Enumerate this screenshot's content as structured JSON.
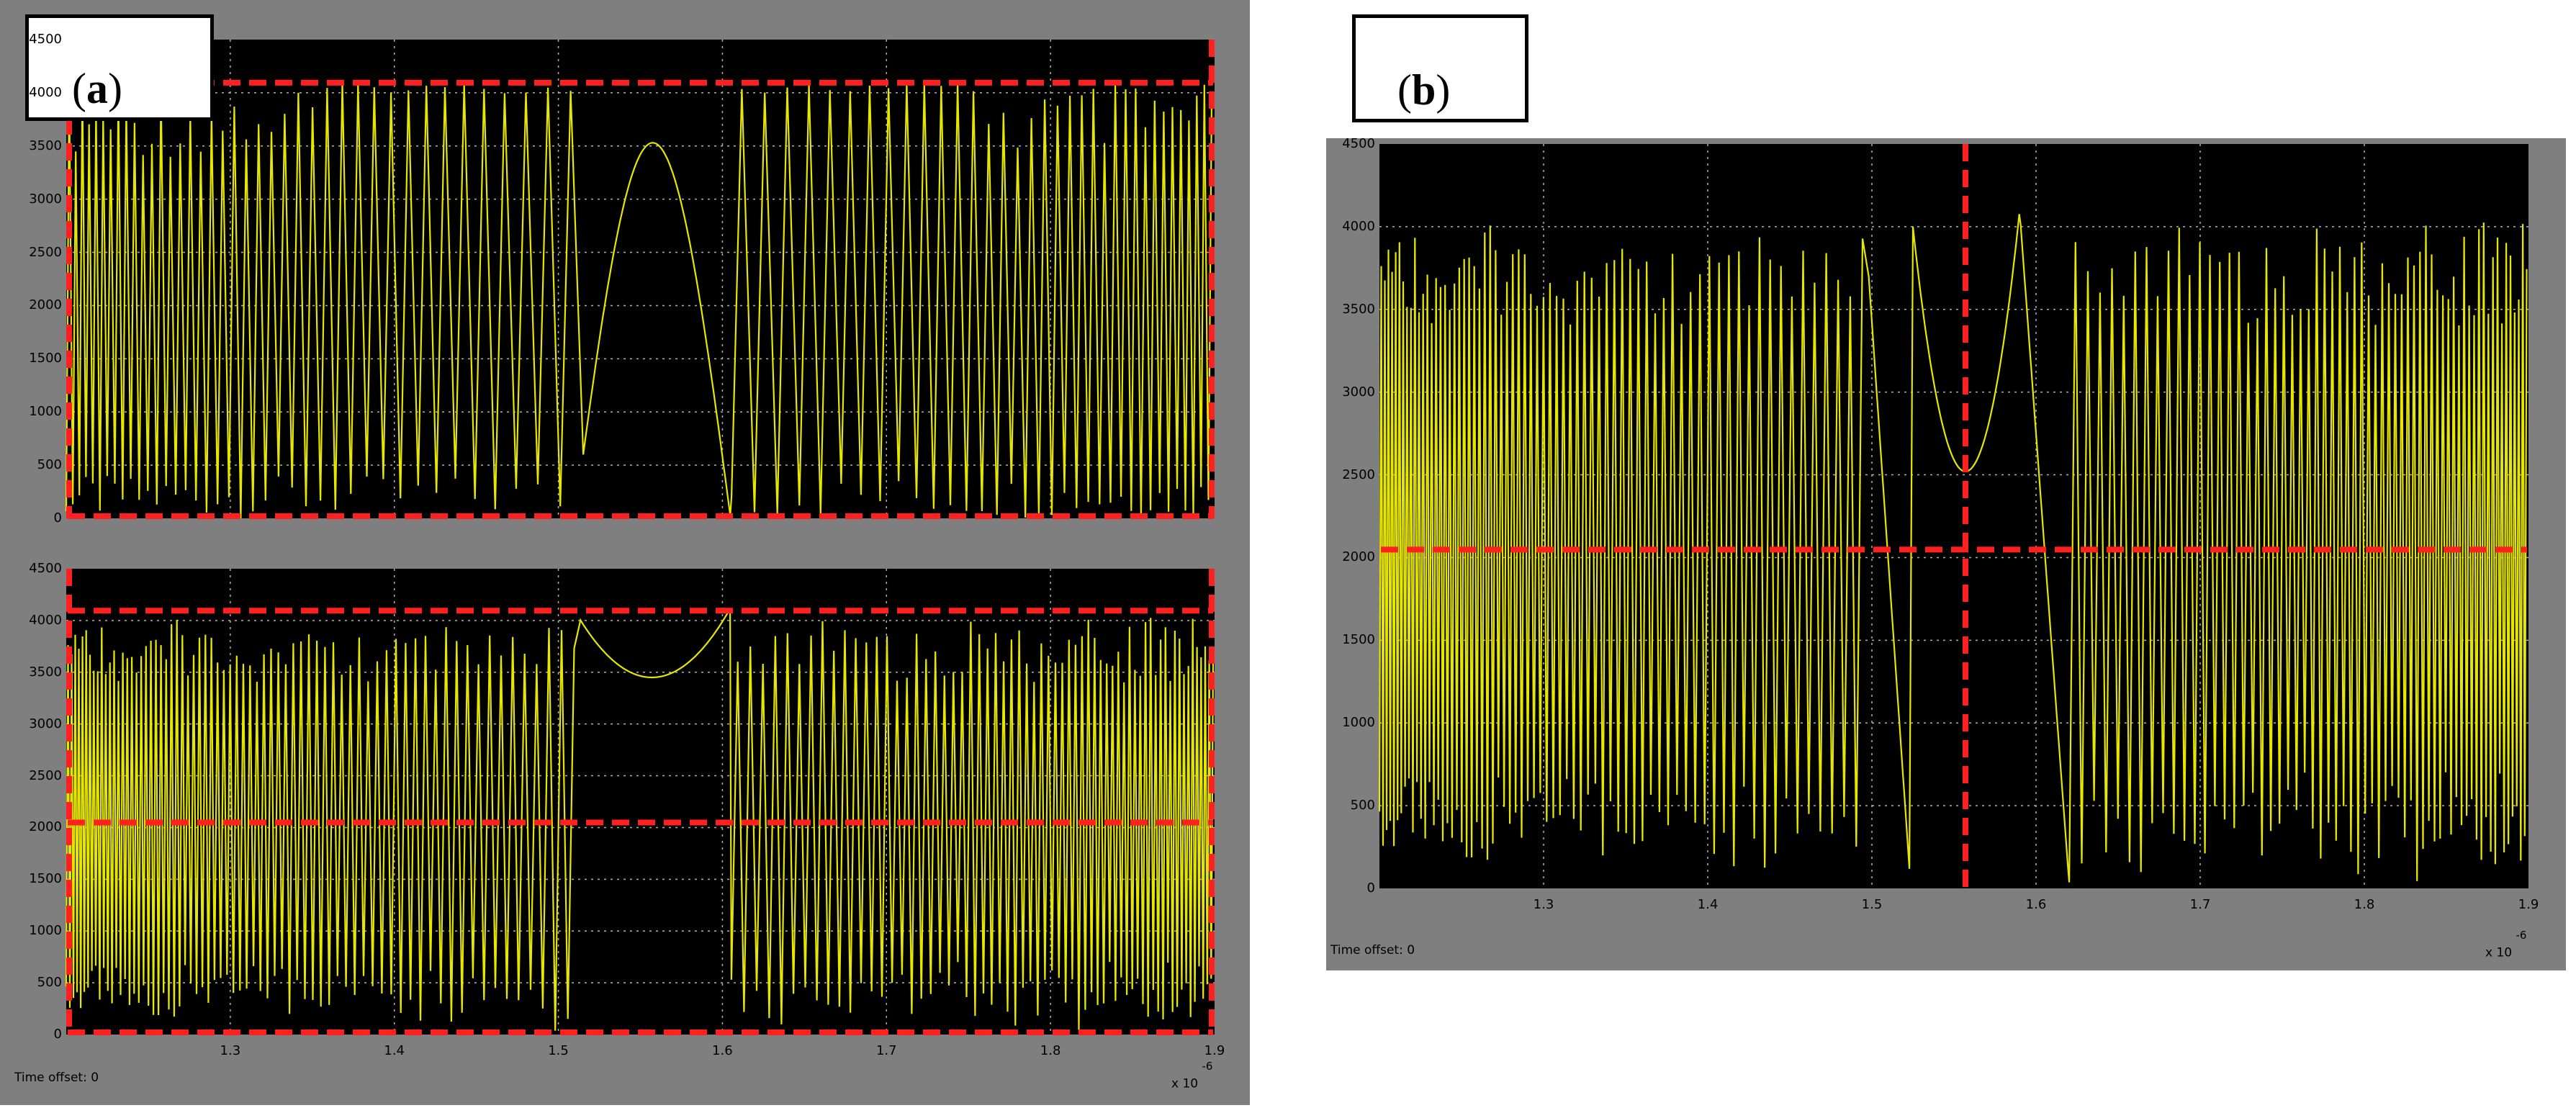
{
  "panels": {
    "a_label": "a",
    "b_label": "b",
    "time_offset_a": "Time offset:  0",
    "time_offset_b": "Time offset:  0",
    "exp_a": "x 10",
    "exp_a_sup": "-6",
    "exp_b": "x 10",
    "exp_b_sup": "-6"
  },
  "colors": {
    "frame": "#7f7f7f",
    "plot_bg": "#000000",
    "trace": "#e6e600",
    "grid": "#b0b0b0",
    "marker": "#ff2020"
  },
  "chart_data": [
    {
      "id": "a-top",
      "type": "line",
      "title": "",
      "xlabel": "",
      "ylabel": "",
      "xlim": [
        1.2,
        1.9
      ],
      "ylim": [
        0,
        4500
      ],
      "xticks": [],
      "yticks": [
        "0",
        "500",
        "1000",
        "1500",
        "2000",
        "2500",
        "3000",
        "3500",
        "4000",
        "4500"
      ],
      "grid": true,
      "series": [
        {
          "description_of_trace": "dense oscillating waveform",
          "min": 0,
          "max": 4095,
          "regions": [
            {
              "x": [
                1.2,
                1.35
              ],
              "start_period": 0.004,
              "end_period": 0.0062
            },
            {
              "x": [
                1.35,
                1.5
              ],
              "start_period": 0.0062,
              "end_period": 0.014
            },
            {
              "x": [
                1.5,
                1.62
              ],
              "shape": "slow-lobe",
              "peak_x": 1.557,
              "peak_y": 3530
            },
            {
              "x": [
                1.62,
                1.75
              ],
              "start_period": 0.014,
              "end_period": 0.0062
            },
            {
              "x": [
                1.75,
                1.9
              ],
              "start_period": 0.0062,
              "end_period": 0.004
            }
          ]
        }
      ],
      "markers": {
        "h_lines": [
          0,
          4095
        ],
        "v_lines": [
          1.2,
          1.9
        ],
        "style": "red-dashed-box"
      }
    },
    {
      "id": "a-bottom",
      "type": "line",
      "title": "",
      "xlabel": "",
      "ylabel": "",
      "xlim": [
        1.2,
        1.9
      ],
      "ylim": [
        0,
        4500
      ],
      "xticks": [
        "1.3",
        "1.4",
        "1.5",
        "1.6",
        "1.7",
        "1.8",
        "1.9"
      ],
      "yticks": [
        "0",
        "500",
        "1000",
        "1500",
        "2000",
        "2500",
        "3000",
        "3500",
        "4000",
        "4500"
      ],
      "grid": true,
      "series": [
        {
          "description_of_trace": "folded dense oscillating waveform",
          "min": 0,
          "max": 4095,
          "dip_x": 1.557,
          "dip_y": 3450
        }
      ],
      "markers": {
        "h_lines": [
          0,
          2048,
          4095
        ],
        "v_lines": [
          1.2,
          1.9
        ],
        "style": "red-dashed"
      }
    },
    {
      "id": "b",
      "type": "line",
      "title": "",
      "xlabel": "",
      "ylabel": "",
      "xlim": [
        1.2,
        1.9
      ],
      "ylim": [
        0,
        4500
      ],
      "xticks": [
        "1.3",
        "1.4",
        "1.5",
        "1.6",
        "1.7",
        "1.8",
        "1.9"
      ],
      "yticks": [
        "0",
        "500",
        "1000",
        "1500",
        "2000",
        "2500",
        "3000",
        "3500",
        "4000",
        "4500"
      ],
      "grid": true,
      "series": [
        {
          "description_of_trace": "folded dense oscillating waveform with centre gap",
          "min": 0,
          "max": 4095,
          "vertex_x": 1.557,
          "vertex_y": 2520
        }
      ],
      "markers": {
        "h_lines": [
          2048
        ],
        "v_lines": [
          1.557
        ],
        "style": "red-dashed-crosshair"
      }
    }
  ]
}
